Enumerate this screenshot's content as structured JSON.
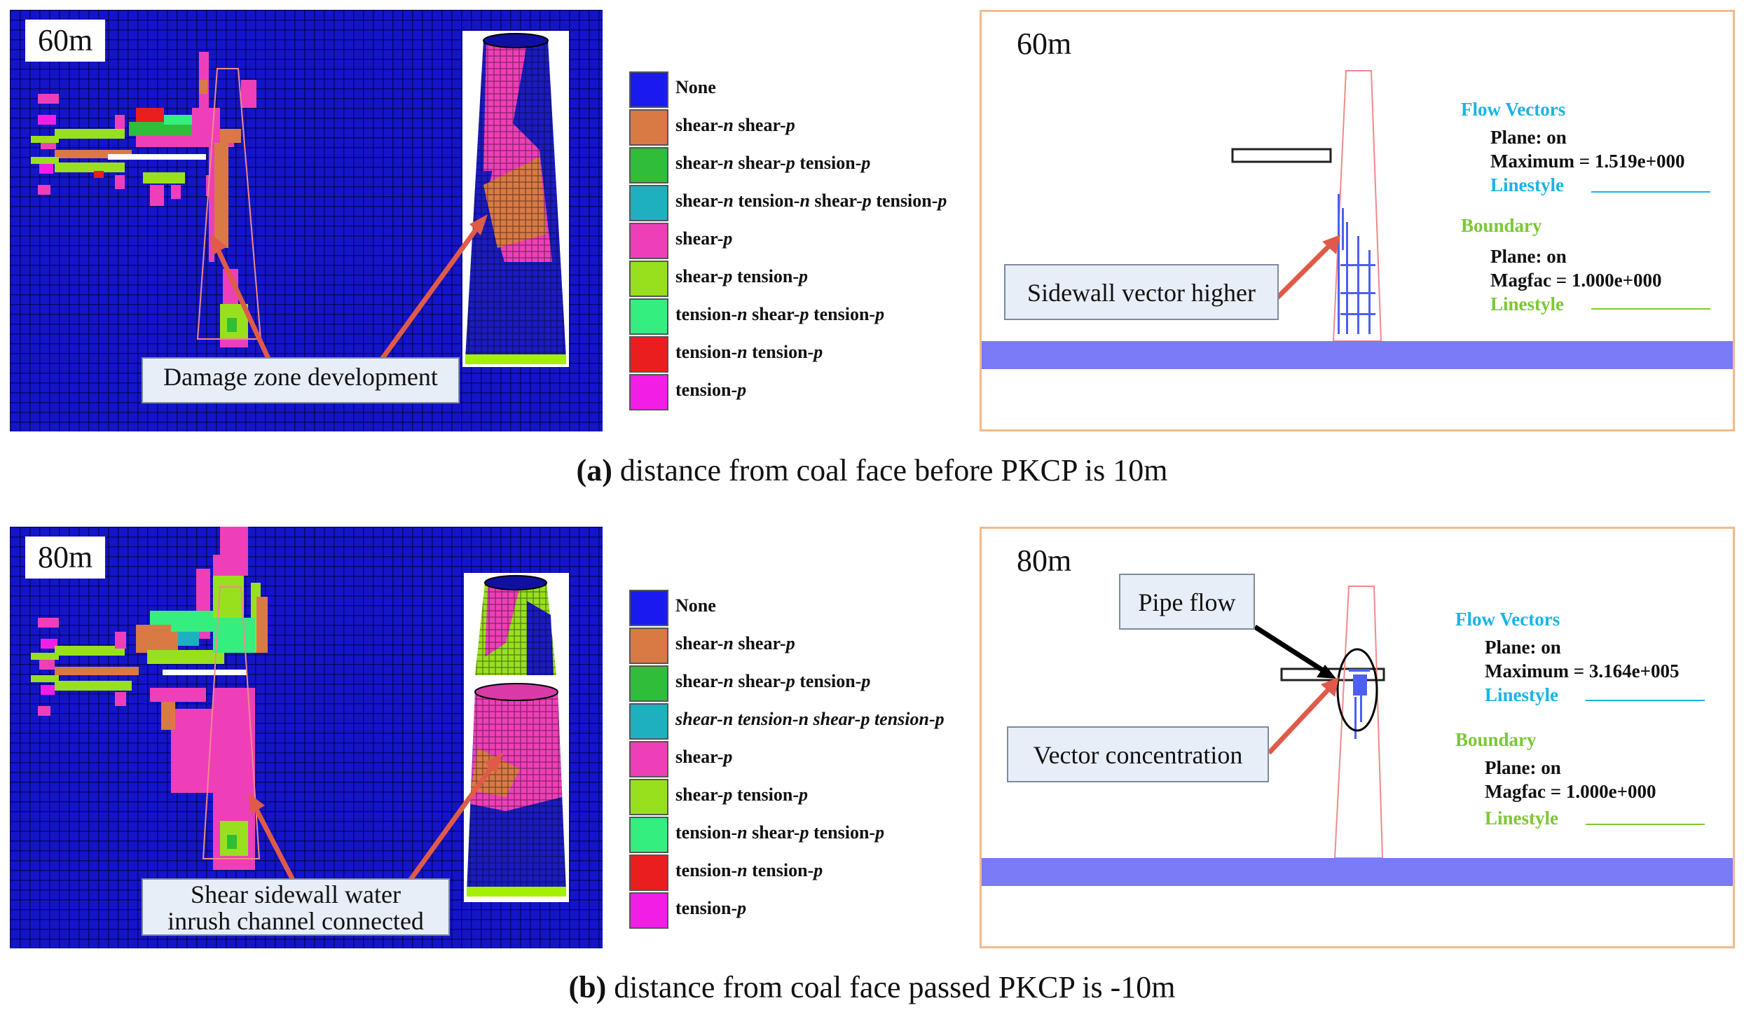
{
  "panel_a": {
    "mesh_depth": "60m",
    "callout": "Damage zone development",
    "flow_depth": "60m",
    "flow_callout": "Sidewall vector higher",
    "flow_vectors_title": "Flow Vectors",
    "flow_plane": "Plane: on",
    "flow_maximum": "Maximum = 1.519e+000",
    "flow_linestyle": "Linestyle",
    "boundary_title": "Boundary",
    "boundary_plane": "Plane: on",
    "boundary_magfac": "Magfac = 1.000e+000",
    "boundary_linestyle": "Linestyle",
    "caption_prefix": "(a)",
    "caption_text": " distance from coal face before PKCP is 10m"
  },
  "panel_b": {
    "mesh_depth": "80m",
    "callout_line1": "Shear sidewall water",
    "callout_line2": "inrush channel connected",
    "flow_depth": "80m",
    "pipe_callout": "Pipe flow",
    "flow_callout": "Vector concentration",
    "flow_vectors_title": "Flow Vectors",
    "flow_plane": "Plane: on",
    "flow_maximum": "Maximum = 3.164e+005",
    "flow_linestyle": "Linestyle",
    "boundary_title": "Boundary",
    "boundary_plane": "Plane: on",
    "boundary_magfac": "Magfac = 1.000e+000",
    "boundary_linestyle": "Linestyle",
    "caption_prefix": "(b)",
    "caption_text": " distance from coal face passed PKCP is -10m"
  },
  "legend": [
    {
      "html": "None",
      "color": "#1a1af0"
    },
    {
      "html": "shear-<i>n</i> shear-<i>p</i>",
      "color": "#d97a45"
    },
    {
      "html": "shear-<i>n</i> shear-<i>p</i> tension-<i>p</i>",
      "color": "#2fbd3a"
    },
    {
      "html": "shear-<i>n</i> tension-<i>n</i> shear-<i>p</i> tension-<i>p</i>",
      "color": "#1fb0c0"
    },
    {
      "html": "shear-<i>p</i>",
      "color": "#ee3fb8"
    },
    {
      "html": "shear-<i>p</i> tension-<i>p</i>",
      "color": "#98e01e"
    },
    {
      "html": "tension-<i>n</i> shear-<i>p</i> tension-<i>p</i>",
      "color": "#35ee80"
    },
    {
      "html": "tension-<i>n</i> tension-<i>p</i>",
      "color": "#ea1e1e"
    },
    {
      "html": "tension-<i>p</i>",
      "color": "#f21ee6"
    }
  ],
  "legend_b_shear_nt_italic": true,
  "colors": {
    "mesh_blue": "#1414c8",
    "flow_vectors_color": "#1ab4e6",
    "boundary_color": "#7cc834",
    "coal_seam_color": "#7b7bf7",
    "arrow_red": "#e05a4a",
    "panel_border": "#f4b98a",
    "pipe_outline": "#f08a8a"
  }
}
